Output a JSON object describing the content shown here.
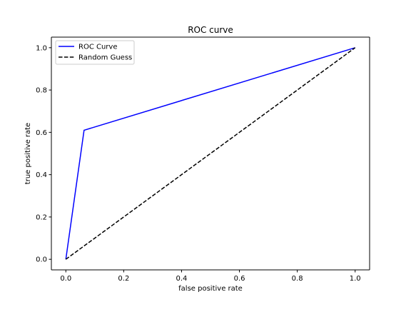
{
  "chart_data": {
    "type": "line",
    "title": "ROC curve",
    "xlabel": "false positive rate",
    "ylabel": "true positive rate",
    "xlim": [
      -0.05,
      1.05
    ],
    "ylim": [
      -0.05,
      1.05
    ],
    "xticks": [
      0.0,
      0.2,
      0.4,
      0.6,
      0.8,
      1.0
    ],
    "yticks": [
      0.0,
      0.2,
      0.4,
      0.6,
      0.8,
      1.0
    ],
    "xtick_labels": [
      "0.0",
      "0.2",
      "0.4",
      "0.6",
      "0.8",
      "1.0"
    ],
    "ytick_labels": [
      "0.0",
      "0.2",
      "0.4",
      "0.6",
      "0.8",
      "1.0"
    ],
    "grid": false,
    "legend_position": "top-left",
    "series": [
      {
        "name": "ROC Curve",
        "color": "#0000ff",
        "style": "solid",
        "x": [
          0.0,
          0.063,
          1.0
        ],
        "y": [
          0.0,
          0.61,
          1.0
        ]
      },
      {
        "name": "Random Guess",
        "color": "#000000",
        "style": "dashed",
        "x": [
          0.0,
          1.0
        ],
        "y": [
          0.0,
          1.0
        ]
      }
    ]
  }
}
